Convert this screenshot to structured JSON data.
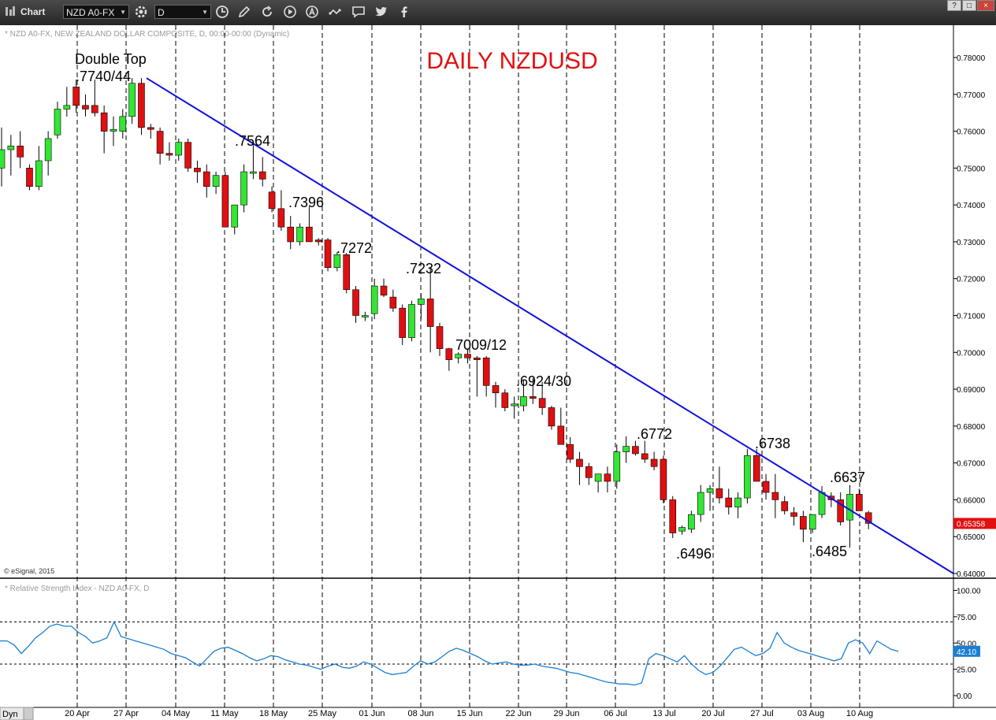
{
  "toolbar": {
    "title": "Chart",
    "symbol": "NZD A0-FX",
    "interval": "D",
    "icons": [
      "chart-logo-icon",
      "gear-icon",
      "clock-icon",
      "pencil-icon",
      "refresh-icon",
      "play-icon",
      "text-annotation-icon",
      "link-icon",
      "comment-icon",
      "twitter-icon",
      "facebook-icon"
    ],
    "window_buttons": [
      "?",
      "□",
      "×"
    ]
  },
  "chart_data": [
    {
      "type": "candlestick",
      "header_label": "* NZD A0-FX, NEW ZEALAND DOLLAR COMPOSITE, D, 00:00-00:00 (Dynamic)",
      "title": "DAILY NZDUSD",
      "copyright": "© eSignal, 2015",
      "ylim": [
        0.64,
        0.785
      ],
      "y_ticks": [
        "0.78000",
        "0.77000",
        "0.76000",
        "0.75000",
        "0.74000",
        "0.73000",
        "0.72000",
        "0.71000",
        "0.70000",
        "0.69000",
        "0.68000",
        "0.67000",
        "0.66000",
        "0.65000",
        "0.64000"
      ],
      "x_ticks": [
        "20 Apr",
        "27 Apr",
        "04 May",
        "11 May",
        "18 May",
        "25 May",
        "01 Jun",
        "08 Jun",
        "15 Jun",
        "22 Jun",
        "29 Jun",
        "06 Jul",
        "13 Jul",
        "20 Jul",
        "27 Jul",
        "03 Aug",
        "10 Aug"
      ],
      "last_price": "0.65358",
      "up_color": "#33e633",
      "down_color": "#e01010",
      "trendline_color": "#1010e0",
      "candles": [
        {
          "o": 0.75,
          "h": 0.761,
          "l": 0.745,
          "c": 0.755
        },
        {
          "o": 0.755,
          "h": 0.759,
          "l": 0.748,
          "c": 0.756
        },
        {
          "o": 0.756,
          "h": 0.76,
          "l": 0.75,
          "c": 0.753
        },
        {
          "o": 0.75,
          "h": 0.751,
          "l": 0.744,
          "c": 0.745
        },
        {
          "o": 0.745,
          "h": 0.756,
          "l": 0.744,
          "c": 0.752
        },
        {
          "o": 0.752,
          "h": 0.76,
          "l": 0.748,
          "c": 0.758
        },
        {
          "o": 0.759,
          "h": 0.768,
          "l": 0.758,
          "c": 0.766
        },
        {
          "o": 0.766,
          "h": 0.772,
          "l": 0.764,
          "c": 0.767
        },
        {
          "o": 0.772,
          "h": 0.774,
          "l": 0.765,
          "c": 0.767
        },
        {
          "o": 0.767,
          "h": 0.77,
          "l": 0.764,
          "c": 0.766
        },
        {
          "o": 0.767,
          "h": 0.774,
          "l": 0.764,
          "c": 0.765
        },
        {
          "o": 0.765,
          "h": 0.767,
          "l": 0.754,
          "c": 0.76
        },
        {
          "o": 0.76,
          "h": 0.764,
          "l": 0.756,
          "c": 0.7605
        },
        {
          "o": 0.76,
          "h": 0.766,
          "l": 0.758,
          "c": 0.764
        },
        {
          "o": 0.764,
          "h": 0.7744,
          "l": 0.762,
          "c": 0.773
        },
        {
          "o": 0.773,
          "h": 0.7744,
          "l": 0.759,
          "c": 0.761
        },
        {
          "o": 0.761,
          "h": 0.762,
          "l": 0.758,
          "c": 0.7605
        },
        {
          "o": 0.76,
          "h": 0.761,
          "l": 0.751,
          "c": 0.754
        },
        {
          "o": 0.754,
          "h": 0.757,
          "l": 0.752,
          "c": 0.7535
        },
        {
          "o": 0.7535,
          "h": 0.758,
          "l": 0.752,
          "c": 0.757
        },
        {
          "o": 0.757,
          "h": 0.758,
          "l": 0.749,
          "c": 0.75
        },
        {
          "o": 0.75,
          "h": 0.752,
          "l": 0.746,
          "c": 0.749
        },
        {
          "o": 0.749,
          "h": 0.751,
          "l": 0.742,
          "c": 0.745
        },
        {
          "o": 0.745,
          "h": 0.749,
          "l": 0.743,
          "c": 0.748
        },
        {
          "o": 0.748,
          "h": 0.749,
          "l": 0.734,
          "c": 0.734
        },
        {
          "o": 0.734,
          "h": 0.74,
          "l": 0.732,
          "c": 0.74
        },
        {
          "o": 0.74,
          "h": 0.751,
          "l": 0.738,
          "c": 0.749
        },
        {
          "o": 0.749,
          "h": 0.7564,
          "l": 0.747,
          "c": 0.749
        },
        {
          "o": 0.749,
          "h": 0.753,
          "l": 0.745,
          "c": 0.747
        },
        {
          "o": 0.7435,
          "h": 0.745,
          "l": 0.738,
          "c": 0.739
        },
        {
          "o": 0.739,
          "h": 0.744,
          "l": 0.733,
          "c": 0.734
        },
        {
          "o": 0.734,
          "h": 0.737,
          "l": 0.728,
          "c": 0.73
        },
        {
          "o": 0.73,
          "h": 0.735,
          "l": 0.729,
          "c": 0.734
        },
        {
          "o": 0.734,
          "h": 0.7396,
          "l": 0.73,
          "c": 0.73
        },
        {
          "o": 0.7305,
          "h": 0.731,
          "l": 0.729,
          "c": 0.73
        },
        {
          "o": 0.7305,
          "h": 0.731,
          "l": 0.722,
          "c": 0.723
        },
        {
          "o": 0.723,
          "h": 0.7272,
          "l": 0.722,
          "c": 0.7265
        },
        {
          "o": 0.7265,
          "h": 0.727,
          "l": 0.716,
          "c": 0.717
        },
        {
          "o": 0.717,
          "h": 0.718,
          "l": 0.708,
          "c": 0.71
        },
        {
          "o": 0.71,
          "h": 0.711,
          "l": 0.7085,
          "c": 0.71
        },
        {
          "o": 0.7105,
          "h": 0.72,
          "l": 0.709,
          "c": 0.718
        },
        {
          "o": 0.718,
          "h": 0.72,
          "l": 0.715,
          "c": 0.7155
        },
        {
          "o": 0.715,
          "h": 0.717,
          "l": 0.711,
          "c": 0.712
        },
        {
          "o": 0.712,
          "h": 0.713,
          "l": 0.702,
          "c": 0.704
        },
        {
          "o": 0.704,
          "h": 0.714,
          "l": 0.703,
          "c": 0.713
        },
        {
          "o": 0.713,
          "h": 0.716,
          "l": 0.709,
          "c": 0.7145
        },
        {
          "o": 0.7145,
          "h": 0.7232,
          "l": 0.7,
          "c": 0.707
        },
        {
          "o": 0.707,
          "h": 0.708,
          "l": 0.699,
          "c": 0.701
        },
        {
          "o": 0.701,
          "h": 0.7012,
          "l": 0.695,
          "c": 0.698
        },
        {
          "o": 0.6985,
          "h": 0.7,
          "l": 0.697,
          "c": 0.6995
        },
        {
          "o": 0.6995,
          "h": 0.701,
          "l": 0.697,
          "c": 0.6985
        },
        {
          "o": 0.6985,
          "h": 0.699,
          "l": 0.688,
          "c": 0.698
        },
        {
          "o": 0.6985,
          "h": 0.699,
          "l": 0.688,
          "c": 0.691
        },
        {
          "o": 0.691,
          "h": 0.692,
          "l": 0.685,
          "c": 0.689
        },
        {
          "o": 0.689,
          "h": 0.69,
          "l": 0.684,
          "c": 0.685
        },
        {
          "o": 0.6855,
          "h": 0.688,
          "l": 0.682,
          "c": 0.686
        },
        {
          "o": 0.6855,
          "h": 0.6924,
          "l": 0.684,
          "c": 0.688
        },
        {
          "o": 0.688,
          "h": 0.693,
          "l": 0.686,
          "c": 0.6875
        },
        {
          "o": 0.6875,
          "h": 0.692,
          "l": 0.683,
          "c": 0.685
        },
        {
          "o": 0.685,
          "h": 0.6855,
          "l": 0.679,
          "c": 0.68
        },
        {
          "o": 0.68,
          "h": 0.685,
          "l": 0.675,
          "c": 0.675
        },
        {
          "o": 0.675,
          "h": 0.677,
          "l": 0.67,
          "c": 0.671
        },
        {
          "o": 0.671,
          "h": 0.673,
          "l": 0.664,
          "c": 0.669
        },
        {
          "o": 0.669,
          "h": 0.67,
          "l": 0.664,
          "c": 0.666
        },
        {
          "o": 0.665,
          "h": 0.667,
          "l": 0.662,
          "c": 0.667
        },
        {
          "o": 0.667,
          "h": 0.669,
          "l": 0.662,
          "c": 0.665
        },
        {
          "o": 0.665,
          "h": 0.675,
          "l": 0.663,
          "c": 0.673
        },
        {
          "o": 0.673,
          "h": 0.6772,
          "l": 0.67,
          "c": 0.6745
        },
        {
          "o": 0.6745,
          "h": 0.676,
          "l": 0.672,
          "c": 0.6725
        },
        {
          "o": 0.6725,
          "h": 0.676,
          "l": 0.67,
          "c": 0.671
        },
        {
          "o": 0.671,
          "h": 0.673,
          "l": 0.668,
          "c": 0.669
        },
        {
          "o": 0.671,
          "h": 0.672,
          "l": 0.659,
          "c": 0.66
        },
        {
          "o": 0.66,
          "h": 0.661,
          "l": 0.6496,
          "c": 0.651
        },
        {
          "o": 0.6515,
          "h": 0.653,
          "l": 0.6505,
          "c": 0.6525
        },
        {
          "o": 0.652,
          "h": 0.657,
          "l": 0.651,
          "c": 0.656
        },
        {
          "o": 0.656,
          "h": 0.664,
          "l": 0.654,
          "c": 0.662
        },
        {
          "o": 0.662,
          "h": 0.664,
          "l": 0.657,
          "c": 0.663
        },
        {
          "o": 0.663,
          "h": 0.669,
          "l": 0.659,
          "c": 0.6605
        },
        {
          "o": 0.6605,
          "h": 0.663,
          "l": 0.656,
          "c": 0.658
        },
        {
          "o": 0.658,
          "h": 0.662,
          "l": 0.655,
          "c": 0.6605
        },
        {
          "o": 0.6605,
          "h": 0.6738,
          "l": 0.659,
          "c": 0.672
        },
        {
          "o": 0.672,
          "h": 0.6738,
          "l": 0.665,
          "c": 0.665
        },
        {
          "o": 0.665,
          "h": 0.667,
          "l": 0.66,
          "c": 0.662
        },
        {
          "o": 0.662,
          "h": 0.667,
          "l": 0.655,
          "c": 0.66
        },
        {
          "o": 0.6595,
          "h": 0.661,
          "l": 0.656,
          "c": 0.657
        },
        {
          "o": 0.6565,
          "h": 0.658,
          "l": 0.653,
          "c": 0.6555
        },
        {
          "o": 0.6555,
          "h": 0.657,
          "l": 0.6485,
          "c": 0.652
        },
        {
          "o": 0.652,
          "h": 0.656,
          "l": 0.651,
          "c": 0.656
        },
        {
          "o": 0.656,
          "h": 0.6637,
          "l": 0.655,
          "c": 0.662
        },
        {
          "o": 0.661,
          "h": 0.662,
          "l": 0.658,
          "c": 0.66
        },
        {
          "o": 0.66,
          "h": 0.662,
          "l": 0.653,
          "c": 0.654
        },
        {
          "o": 0.6545,
          "h": 0.664,
          "l": 0.647,
          "c": 0.6615
        },
        {
          "o": 0.6615,
          "h": 0.663,
          "l": 0.657,
          "c": 0.657
        },
        {
          "o": 0.6565,
          "h": 0.657,
          "l": 0.652,
          "c": 0.6536
        }
      ],
      "trendline": [
        {
          "i": 15,
          "y": 0.7744
        },
        {
          "i": 99,
          "y": 0.64
        }
      ],
      "annotations": [
        {
          "text": "Double Top",
          "i": 12,
          "y": 0.779
        },
        {
          "text": ".7740/44",
          "i": 12,
          "y": 0.7745
        },
        {
          "text": ".7564",
          "i": 27,
          "y": 0.757
        },
        {
          "text": ".7396",
          "i": 32,
          "y": 0.7405
        },
        {
          "text": ".7272",
          "i": 37,
          "y": 0.728
        },
        {
          "text": ".7232",
          "i": 44,
          "y": 0.724
        },
        {
          "text": "7009/12",
          "i": 50,
          "y": 0.702
        },
        {
          "text": ".6924/30",
          "i": 57,
          "y": 0.693
        },
        {
          "text": ".6772",
          "i": 67,
          "y": 0.6785
        },
        {
          "text": ".6496",
          "i": 72,
          "y": 0.6445
        },
        {
          "text": ".6738",
          "i": 80,
          "y": 0.6745
        },
        {
          "text": ".6485",
          "i": 86,
          "y": 0.645
        },
        {
          "text": ".6637",
          "i": 88,
          "y": 0.6645
        }
      ]
    },
    {
      "type": "line",
      "header_label": "* Relative Strength Index - NZD A0-FX, D",
      "ylim": [
        -5,
        112
      ],
      "y_ticks": [
        "100.00",
        "75.00",
        "50.00",
        "25.00",
        "0.00"
      ],
      "levels": [
        70,
        30
      ],
      "last_value": "42.10",
      "line_color": "#1a7fd4",
      "values": [
        52,
        52,
        48,
        40,
        47,
        55,
        60,
        66,
        68,
        66,
        66,
        60,
        56,
        50,
        52,
        55,
        70,
        56,
        54,
        52,
        50,
        48,
        46,
        44,
        40,
        38,
        36,
        32,
        28,
        35,
        42,
        45,
        46,
        43,
        40,
        36,
        33,
        35,
        38,
        37,
        34,
        32,
        30,
        29,
        27,
        25,
        28,
        30,
        27,
        26,
        28,
        32,
        30,
        26,
        22,
        20,
        21,
        22,
        28,
        33,
        30,
        32,
        37,
        42,
        45,
        43,
        40,
        37,
        33,
        30,
        31,
        32,
        30,
        29,
        29,
        30,
        28,
        27,
        26,
        24,
        22,
        21,
        19,
        17,
        15,
        13,
        12,
        11,
        11,
        10,
        12,
        35,
        40,
        38,
        35,
        32,
        38,
        30,
        24,
        20,
        22,
        28,
        36,
        44,
        46,
        42,
        38,
        40,
        45,
        60,
        50,
        46,
        43,
        41,
        39,
        37,
        35,
        33,
        35,
        50,
        53,
        50,
        40,
        52,
        48,
        44,
        42
      ]
    }
  ],
  "status_bar": {
    "label": "Dyn"
  }
}
